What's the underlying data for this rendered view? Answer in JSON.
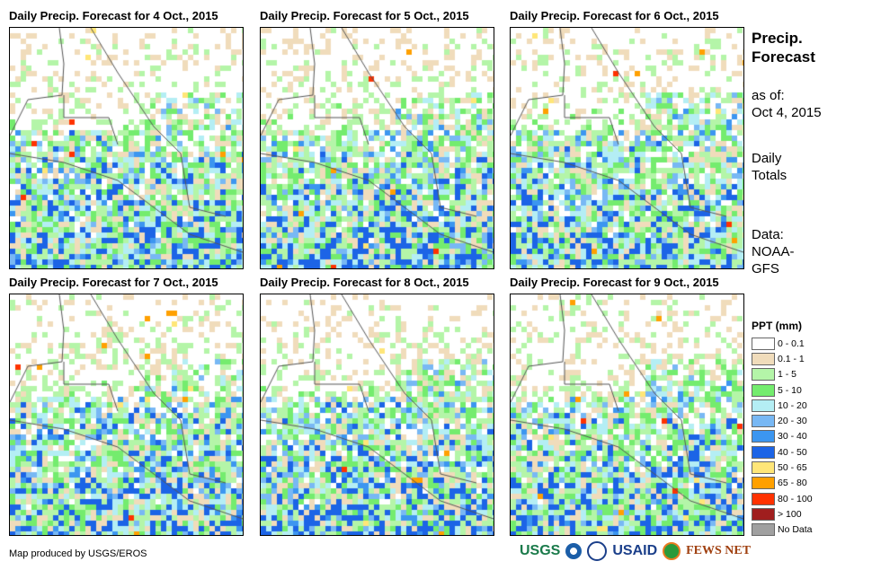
{
  "panels": [
    {
      "title": "Daily Precip. Forecast for 4 Oct., 2015",
      "seed": 4
    },
    {
      "title": "Daily Precip. Forecast for 5 Oct., 2015",
      "seed": 5
    },
    {
      "title": "Daily Precip. Forecast for 6 Oct., 2015",
      "seed": 6
    },
    {
      "title": "Daily Precip. Forecast for 7 Oct., 2015",
      "seed": 7
    },
    {
      "title": "Daily Precip. Forecast for 8 Oct., 2015",
      "seed": 8
    },
    {
      "title": "Daily Precip. Forecast for 9 Oct., 2015",
      "seed": 9
    }
  ],
  "side": {
    "title1": "Precip.",
    "title2": "Forecast",
    "asof1": "as of:",
    "asof2": "Oct 4, 2015",
    "daily1": "Daily",
    "daily2": "Totals",
    "data1": "Data:",
    "data2": "NOAA-",
    "data3": "GFS"
  },
  "legend": {
    "title": "PPT (mm)",
    "items": [
      {
        "label": "0 - 0.1",
        "color": "#ffffff"
      },
      {
        "label": "0.1 - 1",
        "color": "#f0dcbb"
      },
      {
        "label": "1 - 5",
        "color": "#b4f5a8"
      },
      {
        "label": "5 - 10",
        "color": "#74ec6e"
      },
      {
        "label": "10 - 20",
        "color": "#b4eef4"
      },
      {
        "label": "20 - 30",
        "color": "#78b8f4"
      },
      {
        "label": "30 - 40",
        "color": "#3c96f0"
      },
      {
        "label": "40 - 50",
        "color": "#1c64e6"
      },
      {
        "label": "50 - 65",
        "color": "#ffe678"
      },
      {
        "label": "65 - 80",
        "color": "#ffa000"
      },
      {
        "label": "80 - 100",
        "color": "#ff3200"
      },
      {
        "label": "> 100",
        "color": "#a01e1e"
      },
      {
        "label": "No Data",
        "color": "#a0a0a0"
      }
    ]
  },
  "credit": "Map produced by USGS/EROS",
  "logos": {
    "usgs": "USGS",
    "usaid": "USAID",
    "fews": "FEWS NET"
  }
}
